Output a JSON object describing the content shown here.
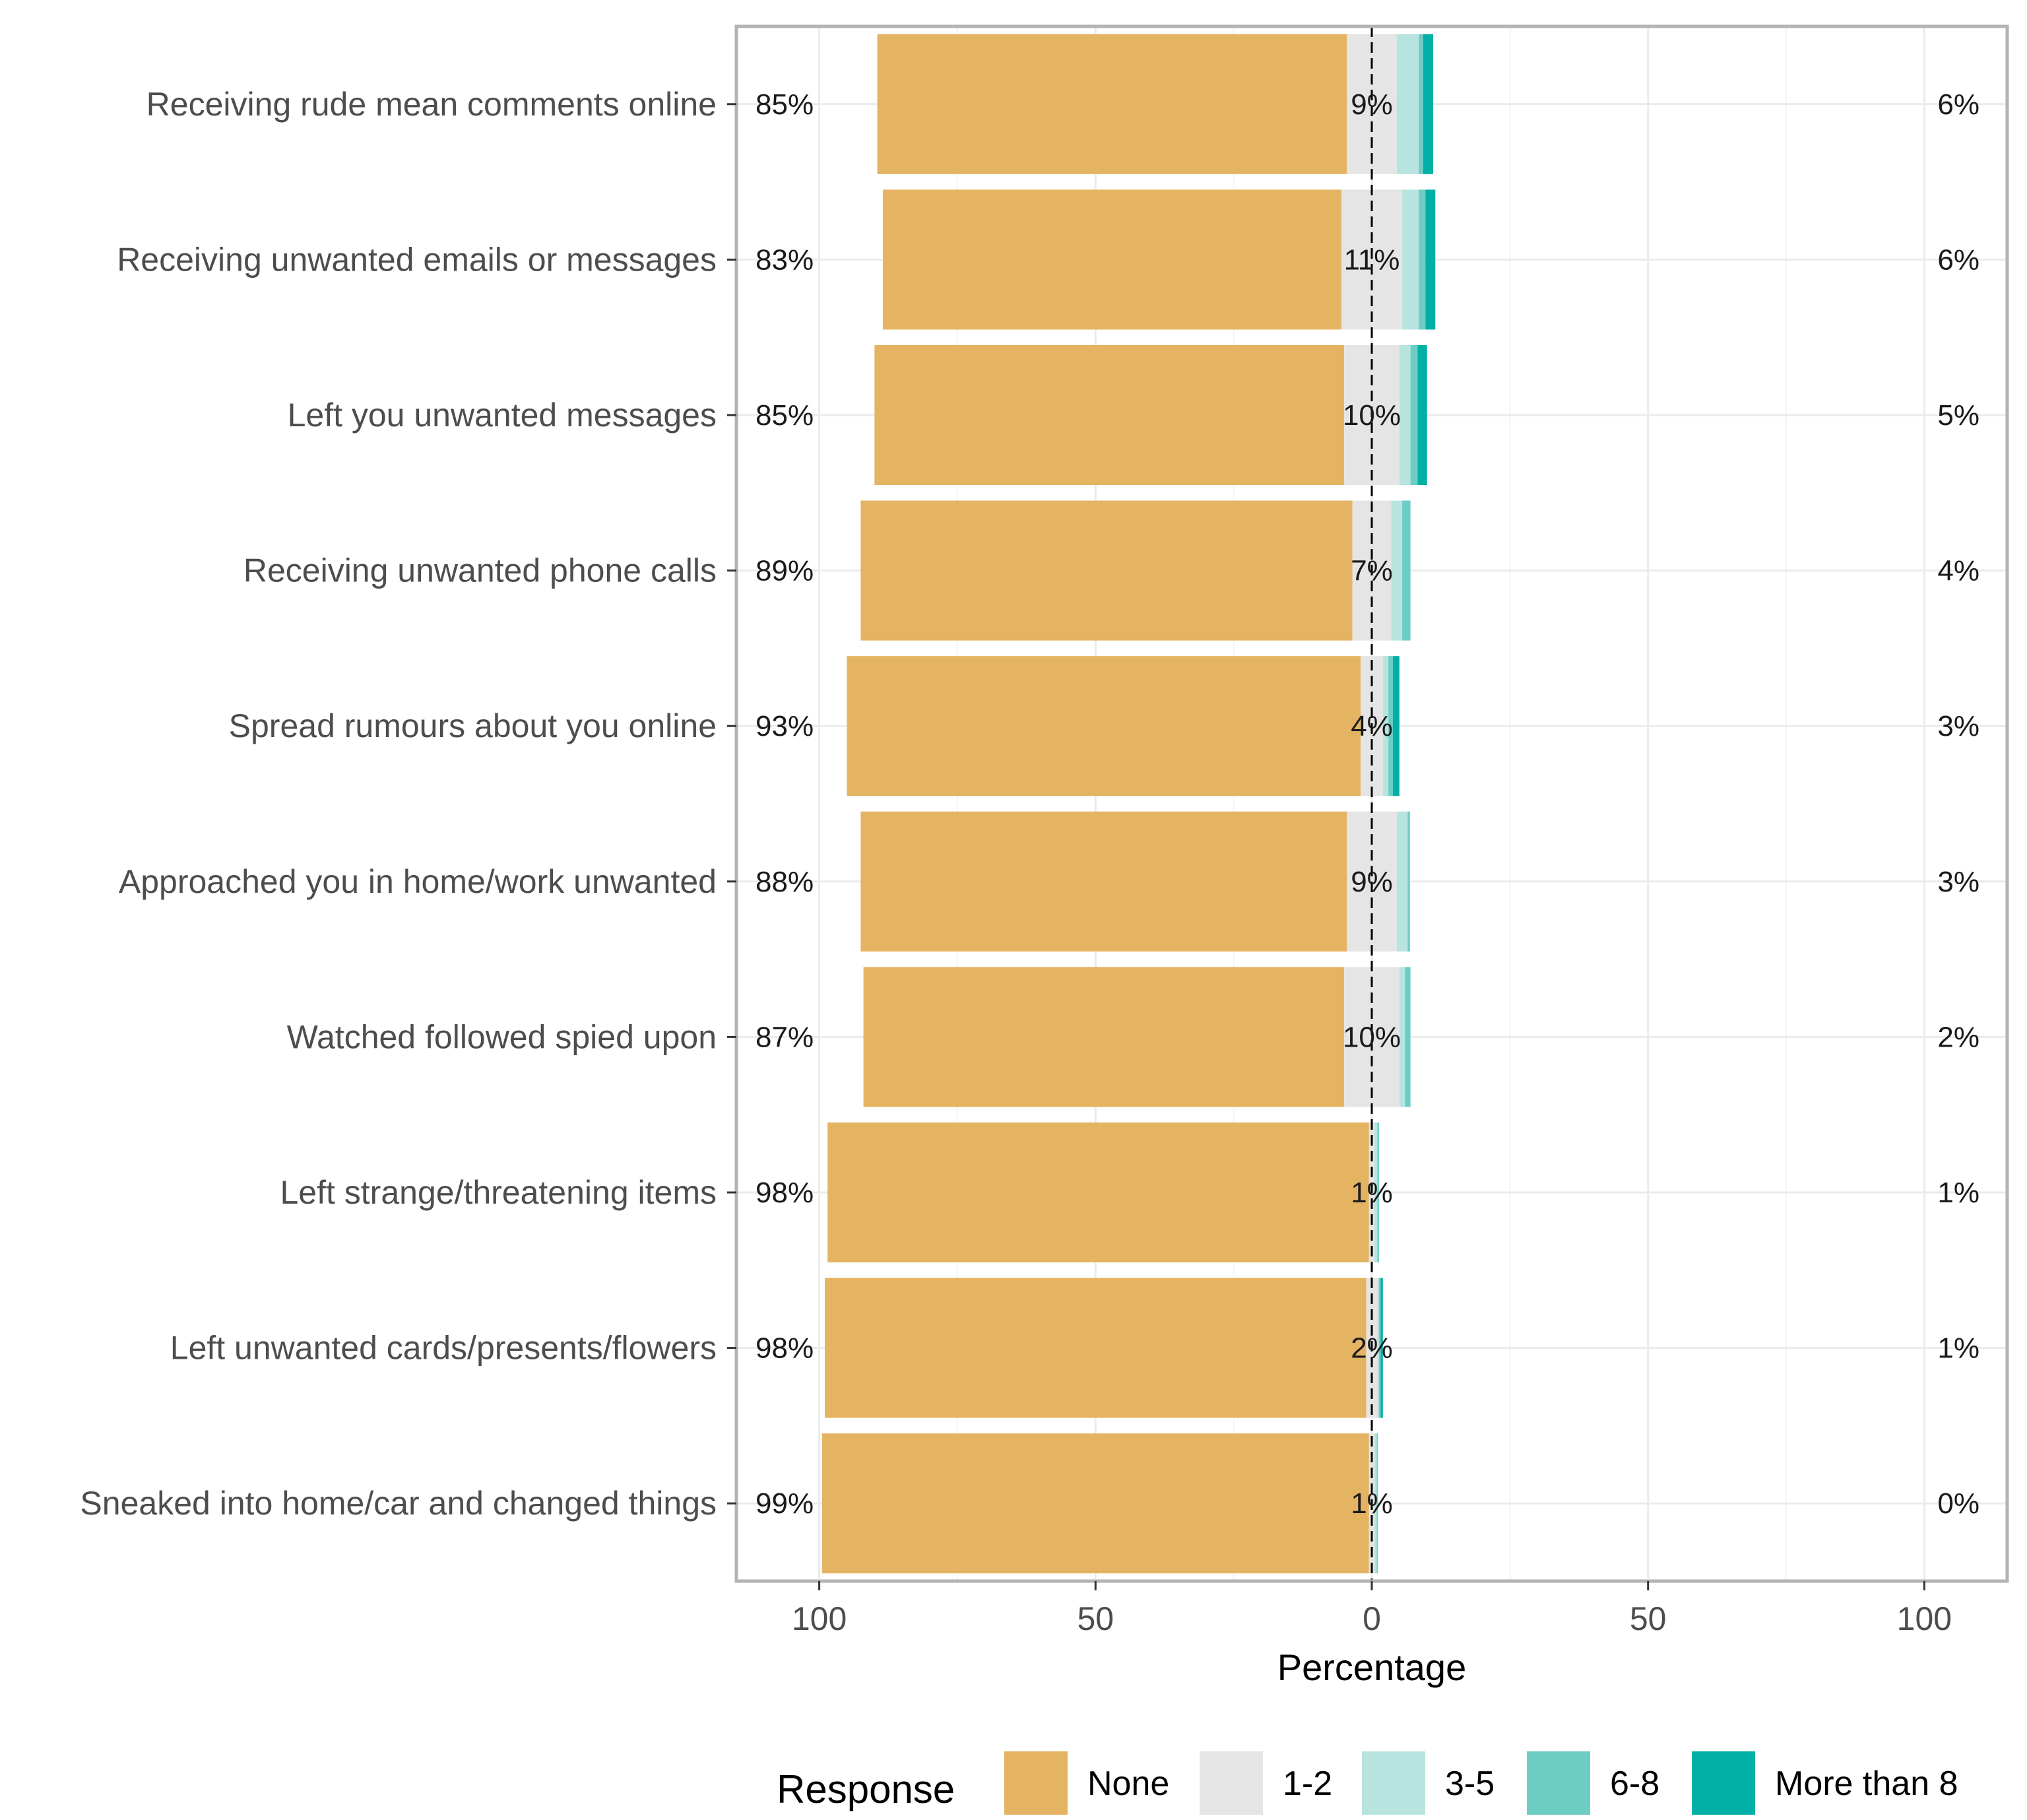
{
  "chart_data": {
    "type": "bar",
    "orientation": "horizontal",
    "stacking": "diverging",
    "xlabel": "Percentage",
    "xlim": [
      -115,
      115
    ],
    "x_ticks": [
      -100,
      -50,
      0,
      50,
      100
    ],
    "x_tick_labels": [
      "100",
      "50",
      "0",
      "50",
      "100"
    ],
    "grid": true,
    "legend_position": "bottom",
    "legend_title": "Response",
    "categories": [
      "Receiving rude mean comments online",
      "Receiving unwanted emails or messages",
      "Left you unwanted messages",
      "Receiving unwanted phone calls",
      "Spread rumours about you online",
      "Approached you in home/work unwanted",
      "Watched followed spied upon",
      "Left strange/threatening items",
      "Left unwanted cards/presents/flowers",
      "Sneaked into home/car and changed things"
    ],
    "series": [
      {
        "name": "None",
        "color": "#E5B462",
        "values": [
          85,
          83,
          85,
          89,
          93,
          88,
          87,
          98,
          98,
          99
        ]
      },
      {
        "name": "1-2",
        "color": "#E5E5E5",
        "values": [
          9,
          11,
          10,
          7,
          4,
          9,
          10,
          1,
          2,
          1
        ]
      },
      {
        "name": "3-5",
        "color": "#B8E4DF",
        "values": [
          4,
          3,
          2,
          2,
          1,
          2,
          1,
          0.5,
          0.3,
          0.4
        ]
      },
      {
        "name": "6-8",
        "color": "#6DCDC4",
        "values": [
          0.8,
          1.2,
          1.3,
          1.5,
          0.8,
          0.4,
          1.0,
          0.3,
          0.3,
          0.2
        ]
      },
      {
        "name": "More than 8",
        "color": "#00AFA5",
        "values": [
          1.8,
          1.8,
          1.7,
          0,
          1.2,
          0,
          0,
          0,
          0.4,
          0
        ]
      }
    ],
    "left_labels": [
      "85%",
      "83%",
      "85%",
      "89%",
      "93%",
      "88%",
      "87%",
      "98%",
      "98%",
      "99%"
    ],
    "center_labels": [
      "9%",
      "11%",
      "10%",
      "7%",
      "4%",
      "9%",
      "10%",
      "1%",
      "2%",
      "1%"
    ],
    "right_labels": [
      "6%",
      "6%",
      "5%",
      "4%",
      "3%",
      "3%",
      "2%",
      "1%",
      "1%",
      "0%"
    ]
  }
}
